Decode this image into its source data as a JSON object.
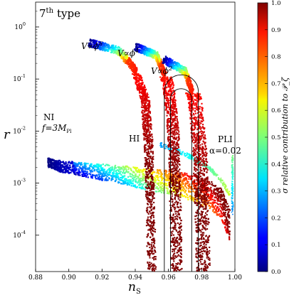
{
  "chart_data": {
    "type": "scatter",
    "title": "7th type",
    "title_parts": {
      "base": "7",
      "sup": "th",
      "rest": "type"
    },
    "xlabel": "n_S",
    "xlabel_parts": {
      "base": "n",
      "sub": "S"
    },
    "ylabel": "r",
    "xlim": [
      0.88,
      1.0
    ],
    "ylim": [
      2e-05,
      3
    ],
    "yscale": "log",
    "x_ticks": [
      "0.88",
      "0.90",
      "0.92",
      "0.94",
      "0.96",
      "0.98",
      "1.00"
    ],
    "y_ticks": [
      {
        "base": "10",
        "exp": "0",
        "value": 1
      },
      {
        "base": "10",
        "exp": "-1",
        "value": 0.1
      },
      {
        "base": "10",
        "exp": "-2",
        "value": 0.01
      },
      {
        "base": "10",
        "exp": "-3",
        "value": 0.001
      },
      {
        "base": "10",
        "exp": "-4",
        "value": 0.0001
      }
    ],
    "colorbar": {
      "label": "σ relative contribution to 𝒫_ζ",
      "range": [
        0.0,
        1.0
      ],
      "ticks": [
        "0.0",
        "0.1",
        "0.2",
        "0.3",
        "0.4",
        "0.5",
        "0.6",
        "0.7",
        "0.8",
        "0.9",
        "1.0"
      ],
      "colormap": "jet"
    },
    "annotations": {
      "phi6": {
        "pre": "V∝ϕ",
        "sup": "6"
      },
      "phi4": {
        "pre": "V∝ϕ",
        "sup": "4"
      },
      "phi2": {
        "pre": "V∝ϕ",
        "sup": "2"
      },
      "ni": "NI",
      "ni_f": {
        "pre": "f=3M",
        "sub": "Pl"
      },
      "hi": "HI",
      "pli": "PLI",
      "pli_alpha": "α=0.02"
    },
    "series": [
      {
        "name": "NI",
        "x": [
          0.8875,
          0.895,
          0.905,
          0.915,
          0.925,
          0.935,
          0.945,
          0.955,
          0.965,
          0.975,
          0.985,
          0.992,
          0.997
        ],
        "y": [
          0.0025,
          0.0021,
          0.0019,
          0.0017,
          0.00155,
          0.0014,
          0.0012,
          0.0011,
          0.001,
          0.0008,
          0.0006,
          0.0004,
          0.00015
        ],
        "sigma_contribution": "0.0 to 1.0 along the band"
      },
      {
        "name": "HI",
        "x": [
          0.955,
          0.965,
          0.975,
          0.985,
          0.992,
          0.997
        ],
        "y": [
          0.0055,
          0.0042,
          0.003,
          0.0019,
          0.0011,
          0.0006
        ],
        "sigma_contribution": "0.3 to 0.6"
      },
      {
        "name": "PLI α=0.02",
        "x": [
          0.9985,
          0.9985,
          0.9985
        ],
        "y": [
          0.0034,
          0.0012,
          0.0003
        ],
        "sigma_contribution": "0.2 to 0.5"
      },
      {
        "name": "V∝ϕ^6",
        "x": [
          0.912,
          0.93,
          0.94,
          0.946,
          0.948,
          0.949,
          0.95
        ],
        "y": [
          0.5,
          0.35,
          0.15,
          0.04,
          0.006,
          0.0006,
          2e-05
        ],
        "sigma_contribution": "0.0 (top) to 1.0 (lower branch)"
      },
      {
        "name": "V∝ϕ^4",
        "x": [
          0.94,
          0.953,
          0.96,
          0.963,
          0.964,
          0.965
        ],
        "y": [
          0.42,
          0.28,
          0.08,
          0.009,
          0.0008,
          2e-05
        ],
        "sigma_contribution": "0.0 (top) to 1.0 (lower branch)"
      },
      {
        "name": "V∝ϕ^2",
        "x": [
          0.957,
          0.97,
          0.976,
          0.979,
          0.98,
          0.981
        ],
        "y": [
          0.24,
          0.14,
          0.04,
          0.004,
          0.0004,
          2e-05
        ],
        "sigma_contribution": "0.0 (top) to 1.0 (lower branch)"
      }
    ],
    "grid": false
  }
}
